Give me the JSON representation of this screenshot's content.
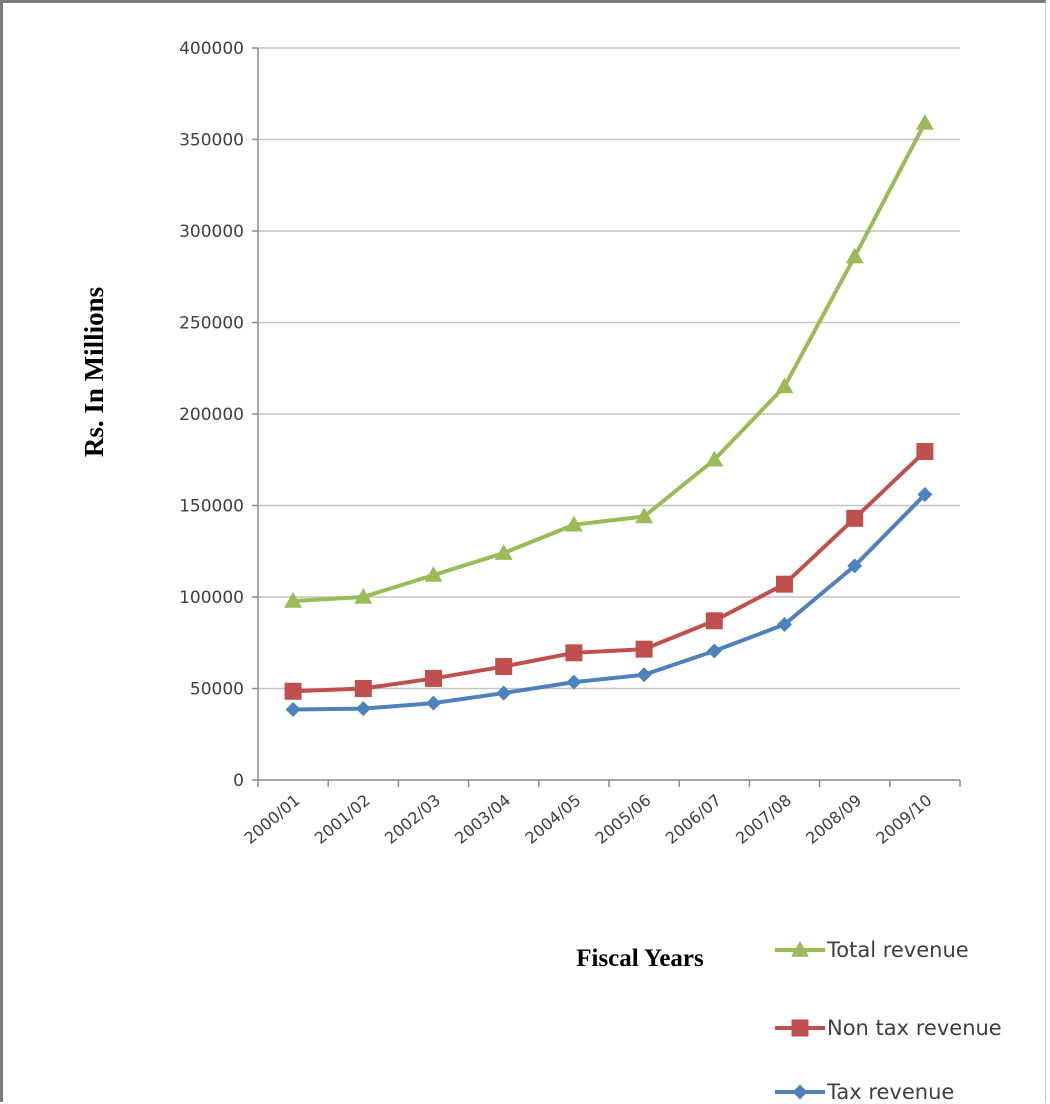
{
  "chart_data": {
    "type": "line",
    "xlabel": "Fiscal Years",
    "ylabel": "Rs. In Millions",
    "ylim": [
      0,
      400000
    ],
    "y_ticks": [
      0,
      50000,
      100000,
      150000,
      200000,
      250000,
      300000,
      350000,
      400000
    ],
    "grid": "horizontal",
    "legend_position": "bottom-right",
    "categories": [
      "2000/01",
      "2001/02",
      "2002/03",
      "2003/04",
      "2004/05",
      "2005/06",
      "2006/07",
      "2007/08",
      "2008/09",
      "2009/10"
    ],
    "series": [
      {
        "name": "Total revenue",
        "color": "#9BBB59",
        "marker": "triangle",
        "values": [
          97800,
          100000,
          112000,
          124000,
          139500,
          144000,
          175000,
          215000,
          286000,
          359000
        ]
      },
      {
        "name": "Non tax revenue",
        "color": "#C0504D",
        "marker": "square",
        "values": [
          48500,
          50000,
          55500,
          62000,
          69500,
          71500,
          87000,
          107000,
          143000,
          179500
        ]
      },
      {
        "name": "Tax revenue",
        "color": "#4F81BD",
        "marker": "diamond",
        "values": [
          38500,
          39000,
          42000,
          47500,
          53500,
          57500,
          70500,
          85000,
          117000,
          156000
        ]
      }
    ]
  }
}
